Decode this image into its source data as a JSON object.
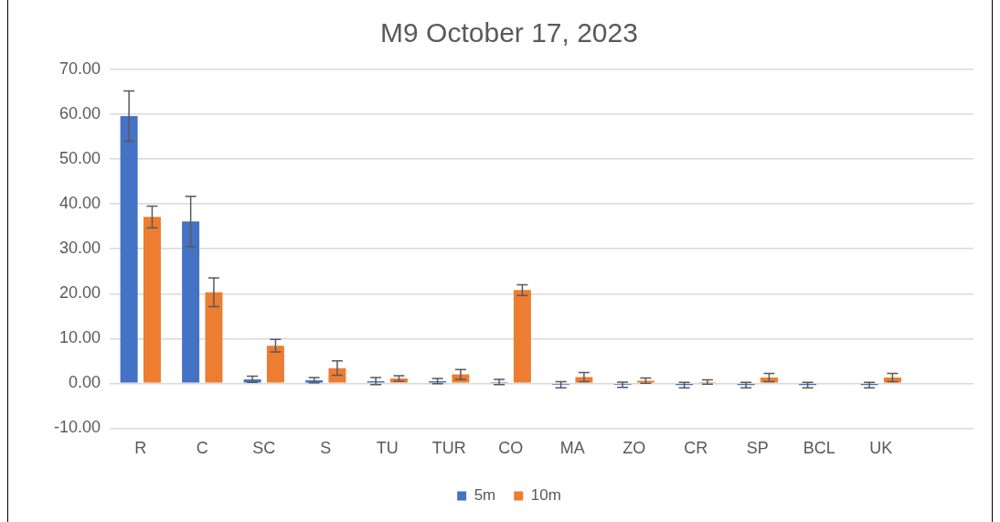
{
  "chart_data": {
    "type": "bar",
    "title": "M9 October 17, 2023",
    "categories": [
      "R",
      "C",
      "SC",
      "S",
      "TU",
      "TUR",
      "CO",
      "MA",
      "ZO",
      "CR",
      "SP",
      "BCL",
      "UK",
      null
    ],
    "series": [
      {
        "name": "5m",
        "color": "#4472c4",
        "values": [
          59.6,
          36.1,
          0.9,
          0.7,
          0.5,
          0.5,
          0.3,
          -0.3,
          -0.3,
          -0.4,
          -0.4,
          -0.4,
          -0.4,
          null
        ],
        "errors": [
          5.6,
          5.6,
          0.7,
          0.6,
          0.8,
          0.6,
          0.6,
          0.7,
          0.6,
          0.6,
          0.6,
          0.6,
          0.6,
          null
        ]
      },
      {
        "name": "10m",
        "color": "#ed7d31",
        "values": [
          37.1,
          20.3,
          8.4,
          3.4,
          1.1,
          2.0,
          20.8,
          1.4,
          0.6,
          0.3,
          1.3,
          0,
          1.3,
          null
        ],
        "errors": [
          2.4,
          3.2,
          1.4,
          1.6,
          0.6,
          1.1,
          1.2,
          1.0,
          0.6,
          0.5,
          0.9,
          null,
          0.9,
          null
        ]
      }
    ],
    "ylim": [
      -10,
      70
    ],
    "yticks": [
      {
        "value": -10,
        "label": "-10.00"
      },
      {
        "value": 0,
        "label": "0.00"
      },
      {
        "value": 10,
        "label": "10.00"
      },
      {
        "value": 20,
        "label": "20.00"
      },
      {
        "value": 30,
        "label": "30.00"
      },
      {
        "value": 40,
        "label": "40.00"
      },
      {
        "value": 50,
        "label": "50.00"
      },
      {
        "value": 60,
        "label": "60.00"
      },
      {
        "value": 70,
        "label": "70.00"
      }
    ],
    "grid": "y",
    "legend": "bottom"
  }
}
